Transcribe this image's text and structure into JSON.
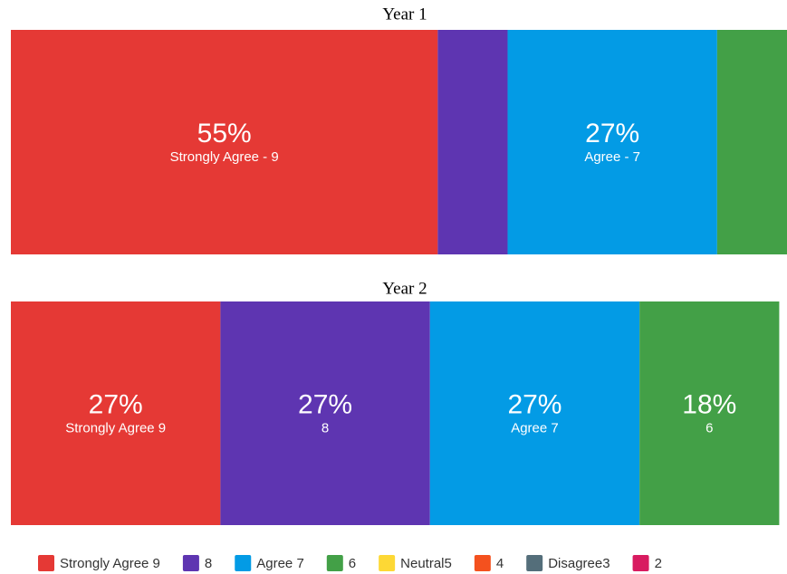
{
  "chart_data": [
    {
      "type": "stacked-bar",
      "title": "Year 1",
      "xlim": [
        0,
        100
      ],
      "series": [
        {
          "label": "Strongly Agree - 9",
          "color": "#e53935",
          "values": [
            55
          ],
          "value_labels": [
            "55%"
          ]
        },
        {
          "color": "#5e35b1",
          "values": [
            9
          ]
        },
        {
          "label": "Agree - 7",
          "color": "#039be5",
          "values": [
            27
          ],
          "value_labels": [
            "27%"
          ]
        },
        {
          "color": "#43a047",
          "values": [
            9
          ]
        }
      ]
    },
    {
      "type": "stacked-bar",
      "title": "Year 2",
      "xlim": [
        0,
        100
      ],
      "series": [
        {
          "label": "Strongly Agree 9",
          "color": "#e53935",
          "values": [
            27
          ],
          "value_labels": [
            "27%"
          ]
        },
        {
          "label": "8",
          "color": "#5e35b1",
          "values": [
            27
          ],
          "value_labels": [
            "27%"
          ]
        },
        {
          "label": "Agree 7",
          "color": "#039be5",
          "values": [
            27
          ],
          "value_labels": [
            "27%"
          ]
        },
        {
          "label": "6",
          "color": "#43a047",
          "values": [
            18
          ],
          "value_labels": [
            "18%"
          ]
        }
      ]
    }
  ],
  "legend": [
    {
      "name": "Strongly Agree 9",
      "color": "#e53935"
    },
    {
      "name": "8",
      "color": "#5e35b1"
    },
    {
      "name": "Agree 7",
      "color": "#039be5"
    },
    {
      "name": "6",
      "color": "#43a047"
    },
    {
      "name": "Neutral5",
      "color": "#fdd835"
    },
    {
      "name": "4",
      "color": "#f4511e"
    },
    {
      "name": "Disagree3",
      "color": "#546e7a"
    },
    {
      "name": "2",
      "color": "#d81b60"
    }
  ]
}
